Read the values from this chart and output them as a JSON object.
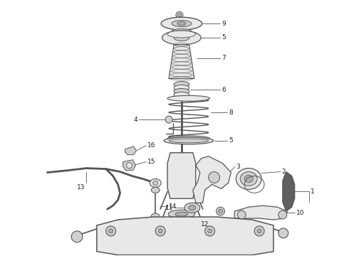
{
  "bg_color": "#ffffff",
  "line_color": "#555555",
  "label_color": "#222222",
  "fig_width": 4.9,
  "fig_height": 3.6,
  "dpi": 100
}
